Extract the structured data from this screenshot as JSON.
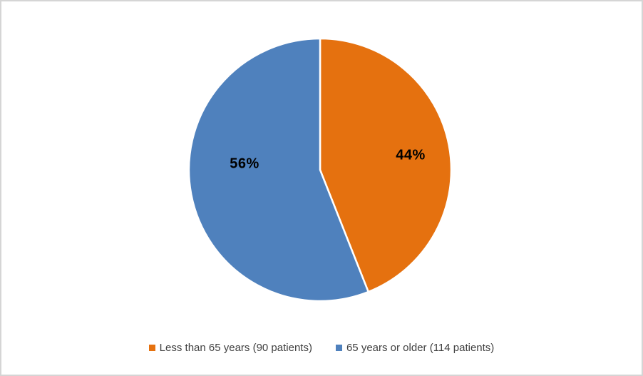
{
  "frame": {
    "background": "#FFFFFF",
    "border_color": "#D5D5D5"
  },
  "chart_data": {
    "type": "pie",
    "title": "",
    "slices": [
      {
        "label": "Less than 65 years (90 patients)",
        "value": 44,
        "unit": "%",
        "patients": 90,
        "color": "#E5710F",
        "data_label": "44%"
      },
      {
        "label": "65 years or older (114 patients)",
        "value": 56,
        "unit": "%",
        "patients": 114,
        "color": "#4F81BD",
        "data_label": "56%"
      }
    ],
    "start_angle_deg": 0,
    "direction": "clockwise",
    "slice_border_color": "#FFFFFF",
    "data_label_color": "#000000",
    "legend_position": "bottom",
    "legend_text_color": "#404040",
    "grid": false
  }
}
